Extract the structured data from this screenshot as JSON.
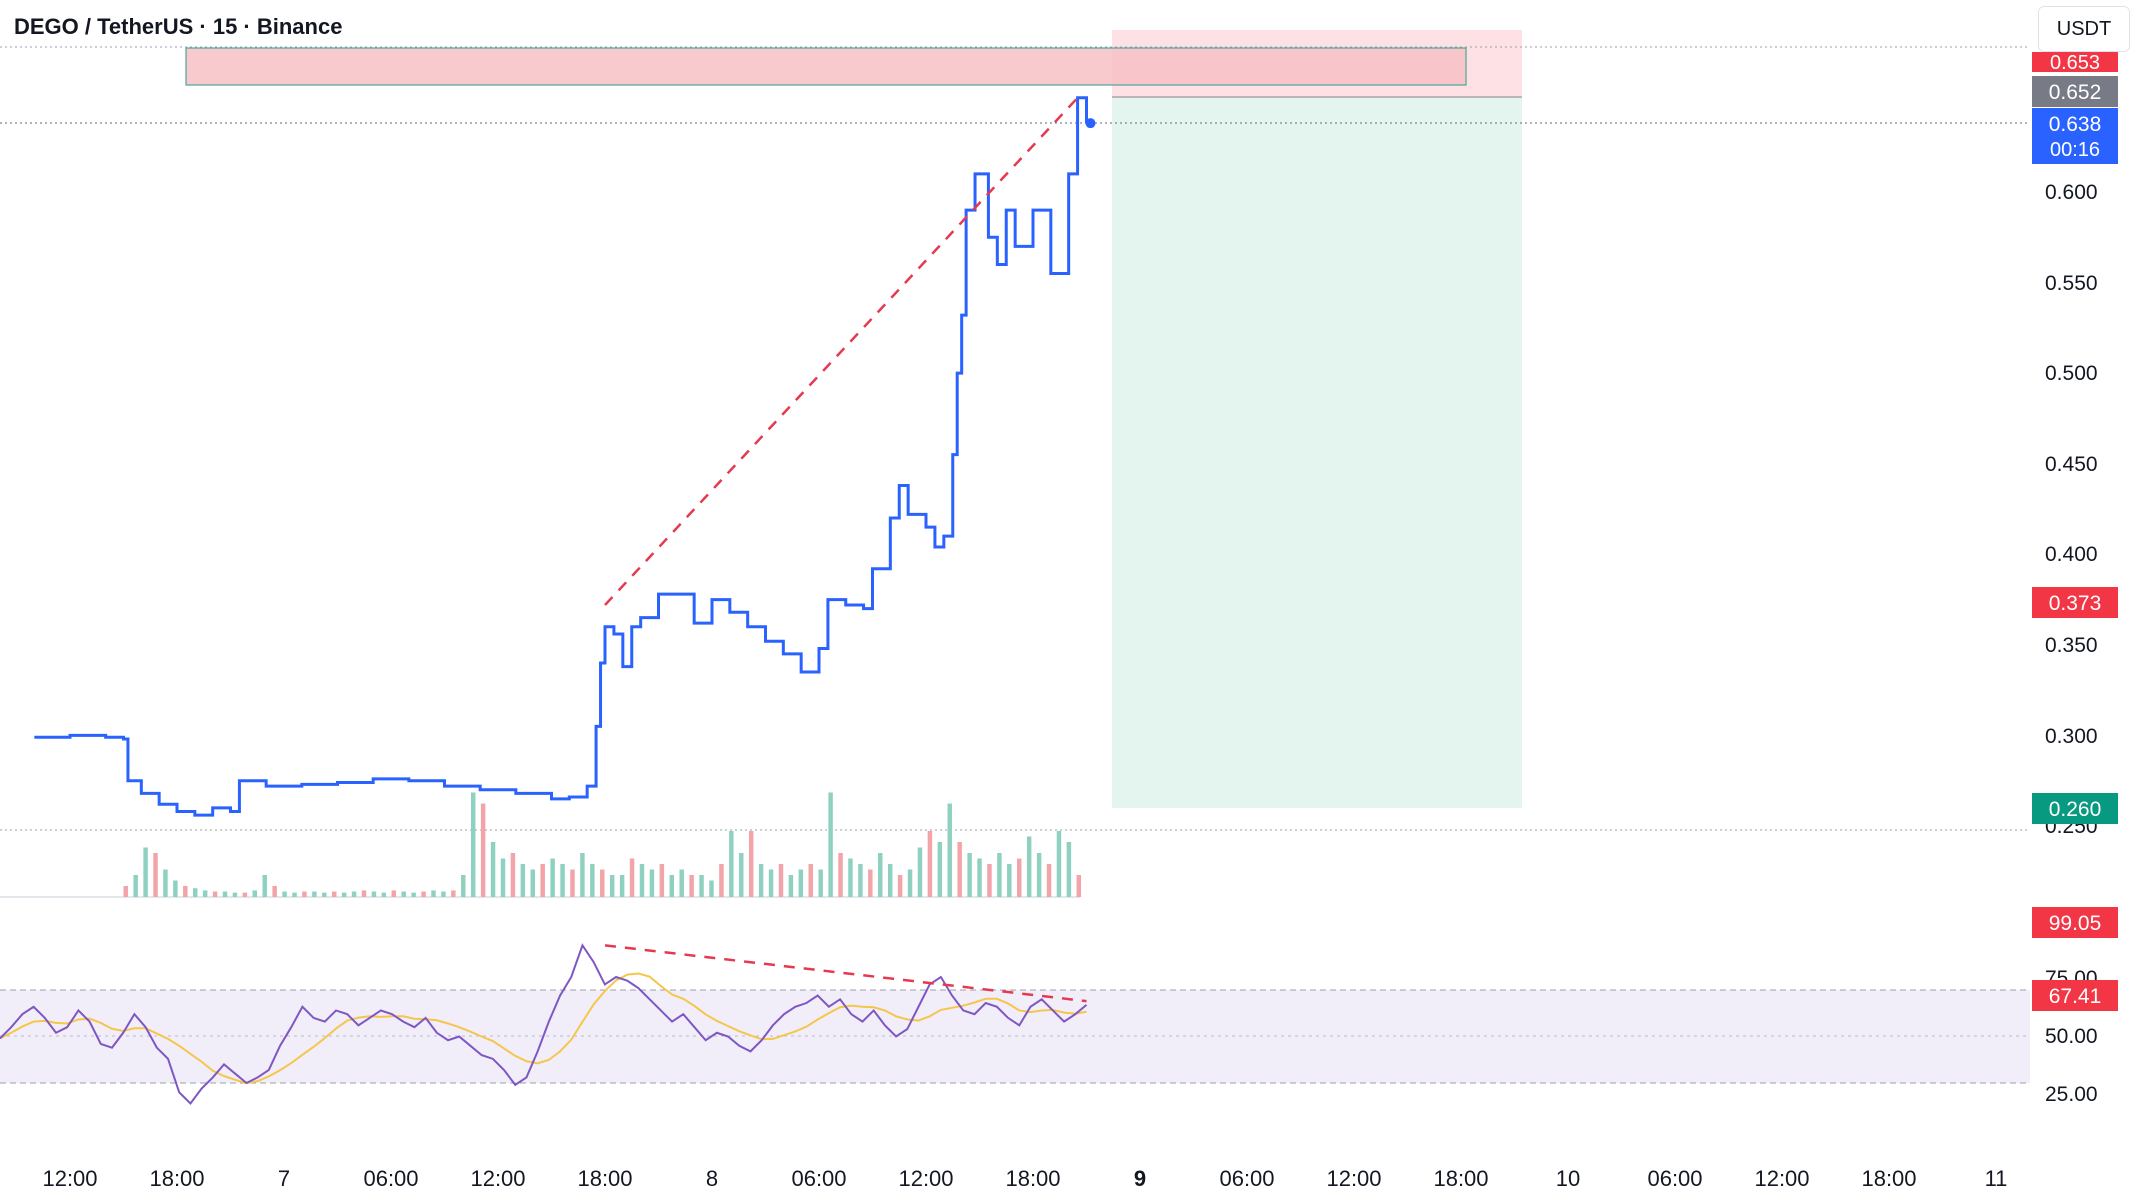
{
  "header": {
    "symbol_title": "DEGO / TetherUS · 15 · Binance",
    "currency_button": "USDT"
  },
  "colors": {
    "price_line": "#2962ff",
    "trend_dashed": "#e53950",
    "stop_zone": "#f7c1c6",
    "target_zone": "#e4f4ef",
    "rsi_line": "#7e57c2",
    "rsi_ma": "#f5c64a",
    "rsi_band": "#f1eefa",
    "badge_red": "#f23645",
    "badge_blue": "#2962ff",
    "badge_gray": "#787b86",
    "badge_green": "#089981",
    "volume_up": "#8fd1c1",
    "volume_down": "#f2a4a9"
  },
  "price_axis": {
    "ticks": [
      "0.600",
      "0.550",
      "0.500",
      "0.450",
      "0.400",
      "0.350",
      "0.300",
      "0.250"
    ],
    "badges": {
      "stop": "0.653",
      "entry": "0.652",
      "last_price": "0.638",
      "countdown": "00:16",
      "prior_level": "0.373",
      "target": "0.260"
    }
  },
  "rsi_axis": {
    "ticks": [
      "75.00",
      "50.00",
      "25.00"
    ],
    "badges": {
      "max": "99.05",
      "current": "67.41"
    }
  },
  "time_axis": {
    "labels": [
      "12:00",
      "18:00",
      "7",
      "06:00",
      "12:00",
      "18:00",
      "8",
      "06:00",
      "12:00",
      "18:00",
      "9",
      "06:00",
      "12:00",
      "18:00",
      "10",
      "06:00",
      "12:00",
      "18:00",
      "11"
    ],
    "bold_labels": [
      "9"
    ]
  },
  "chart_data": {
    "type": "line",
    "xlabel": "",
    "ylabel": "",
    "ylim": [
      0.245,
      0.665
    ],
    "grid": false,
    "series": [
      {
        "values": [
          [
            "6 10:00",
            0.299
          ],
          [
            "6 12:00",
            0.3
          ],
          [
            "6 14:00",
            0.299
          ],
          [
            "6 15:00",
            0.298
          ],
          [
            "6 15:15",
            0.275
          ],
          [
            "6 16:00",
            0.268
          ],
          [
            "6 17:00",
            0.262
          ],
          [
            "6 18:00",
            0.258
          ],
          [
            "6 19:00",
            0.256
          ],
          [
            "6 20:00",
            0.26
          ],
          [
            "6 21:00",
            0.258
          ],
          [
            "6 21:30",
            0.275
          ],
          [
            "6 23:00",
            0.272
          ],
          [
            "7 01:00",
            0.273
          ],
          [
            "7 03:00",
            0.274
          ],
          [
            "7 05:00",
            0.276
          ],
          [
            "7 07:00",
            0.275
          ],
          [
            "7 09:00",
            0.272
          ],
          [
            "7 11:00",
            0.27
          ],
          [
            "7 13:00",
            0.268
          ],
          [
            "7 15:00",
            0.265
          ],
          [
            "7 16:00",
            0.266
          ],
          [
            "7 17:00",
            0.272
          ],
          [
            "7 17:30",
            0.305
          ],
          [
            "7 17:45",
            0.34
          ],
          [
            "7 18:00",
            0.36
          ],
          [
            "7 18:30",
            0.356
          ],
          [
            "7 19:00",
            0.338
          ],
          [
            "7 19:30",
            0.36
          ],
          [
            "7 20:00",
            0.365
          ],
          [
            "7 21:00",
            0.378
          ],
          [
            "7 22:00",
            0.378
          ],
          [
            "7 23:00",
            0.362
          ],
          [
            "8 00:00",
            0.375
          ],
          [
            "8 01:00",
            0.368
          ],
          [
            "8 02:00",
            0.36
          ],
          [
            "8 03:00",
            0.352
          ],
          [
            "8 04:00",
            0.345
          ],
          [
            "8 05:00",
            0.335
          ],
          [
            "8 06:00",
            0.348
          ],
          [
            "8 06:30",
            0.375
          ],
          [
            "8 07:30",
            0.372
          ],
          [
            "8 08:30",
            0.37
          ],
          [
            "8 09:00",
            0.392
          ],
          [
            "8 10:00",
            0.42
          ],
          [
            "8 10:30",
            0.438
          ],
          [
            "8 11:00",
            0.422
          ],
          [
            "8 12:00",
            0.415
          ],
          [
            "8 12:30",
            0.404
          ],
          [
            "8 13:00",
            0.41
          ],
          [
            "8 13:30",
            0.455
          ],
          [
            "8 13:45",
            0.5
          ],
          [
            "8 14:00",
            0.532
          ],
          [
            "8 14:15",
            0.59
          ],
          [
            "8 14:45",
            0.61
          ],
          [
            "8 15:30",
            0.575
          ],
          [
            "8 16:00",
            0.56
          ],
          [
            "8 16:30",
            0.59
          ],
          [
            "8 17:00",
            0.57
          ],
          [
            "8 18:00",
            0.59
          ],
          [
            "8 19:00",
            0.555
          ],
          [
            "8 20:00",
            0.61
          ],
          [
            "8 20:30",
            0.652
          ],
          [
            "8 21:00",
            0.638
          ]
        ]
      }
    ],
    "volume": {
      "note": "relative volume bars",
      "values": [
        0.1,
        0.2,
        0.45,
        0.4,
        0.25,
        0.15,
        0.1,
        0.08,
        0.06,
        0.05,
        0.05,
        0.04,
        0.04,
        0.06,
        0.2,
        0.1,
        0.05,
        0.04,
        0.05,
        0.05,
        0.04,
        0.05,
        0.04,
        0.05,
        0.06,
        0.05,
        0.04,
        0.06,
        0.05,
        0.04,
        0.05,
        0.06,
        0.05,
        0.06,
        0.2,
        0.95,
        0.85,
        0.5,
        0.35,
        0.4,
        0.3,
        0.25,
        0.3,
        0.35,
        0.3,
        0.25,
        0.4,
        0.3,
        0.25,
        0.2,
        0.2,
        0.35,
        0.3,
        0.25,
        0.3,
        0.2,
        0.25,
        0.2,
        0.2,
        0.15,
        0.3,
        0.6,
        0.4,
        0.6,
        0.3,
        0.25,
        0.3,
        0.2,
        0.25,
        0.3,
        0.25,
        0.95,
        0.4,
        0.35,
        0.3,
        0.25,
        0.4,
        0.3,
        0.2,
        0.25,
        0.45,
        0.6,
        0.5,
        0.85,
        0.5,
        0.4,
        0.35,
        0.3,
        0.4,
        0.3,
        0.35,
        0.55,
        0.4,
        0.3,
        0.6,
        0.5,
        0.2
      ]
    },
    "rsi": {
      "ylim": [
        10,
        105
      ],
      "values": [
        49,
        55,
        62,
        66,
        60,
        52,
        55,
        64,
        58,
        46,
        44,
        52,
        62,
        55,
        44,
        38,
        20,
        14,
        22,
        28,
        35,
        30,
        25,
        28,
        32,
        45,
        55,
        66,
        60,
        58,
        64,
        62,
        56,
        60,
        64,
        62,
        58,
        55,
        60,
        52,
        48,
        50,
        45,
        40,
        38,
        32,
        24,
        28,
        42,
        58,
        72,
        82,
        99,
        90,
        78,
        82,
        80,
        76,
        70,
        64,
        58,
        62,
        55,
        48,
        52,
        50,
        45,
        42,
        48,
        56,
        62,
        66,
        68,
        72,
        66,
        70,
        62,
        58,
        64,
        56,
        50,
        54,
        66,
        78,
        82,
        72,
        64,
        62,
        68,
        66,
        60,
        56,
        66,
        70,
        64,
        58,
        62,
        67
      ]
    },
    "annotations": [
      {
        "type": "dashed_trendline",
        "pane": "price",
        "from": [
          "7 18:00",
          0.372
        ],
        "to": [
          "8 20:30",
          0.652
        ]
      },
      {
        "type": "dashed_trendline",
        "pane": "rsi",
        "from": [
          "7 18:00",
          99
        ],
        "to": [
          "8 21:00",
          69
        ]
      },
      {
        "type": "short_position",
        "entry": 0.652,
        "stop": 0.653,
        "target": 0.26
      },
      {
        "type": "resistance_zone",
        "upper": 0.663,
        "lower": 0.643
      }
    ]
  }
}
